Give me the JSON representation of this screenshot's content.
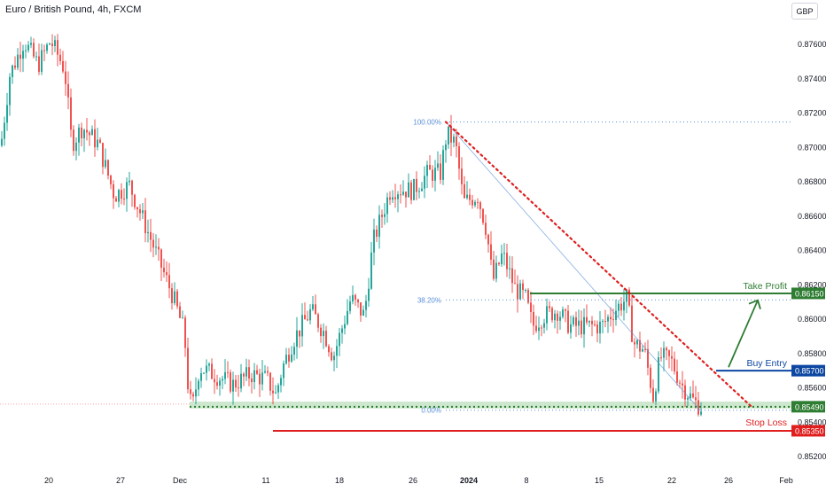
{
  "header": {
    "symbol_title": "Euro / British Pound, 4h, FXCM",
    "currency_button": "GBP"
  },
  "colors": {
    "up": "#26a69a",
    "down": "#ef5350",
    "take_profit": "#2e7d32",
    "buy_entry": "#0d47a1",
    "stop_loss": "#e01e1e",
    "fib": "#5a8fd6",
    "support_zone": "#c8e6c9"
  },
  "chart_data": {
    "type": "candlestick",
    "title": "Euro / British Pound, 4h, FXCM",
    "x_ticks": [
      "20",
      "27",
      "Dec",
      "11",
      "18",
      "26",
      "2024",
      "8",
      "15",
      "22",
      "26",
      "Feb"
    ],
    "y_ticks": [
      "0.87600",
      "0.87400",
      "0.87200",
      "0.87000",
      "0.86800",
      "0.86600",
      "0.86400",
      "0.86200",
      "0.86000",
      "0.85800",
      "0.85600",
      "0.85400",
      "0.85200"
    ],
    "ylim": [
      0.8515,
      0.8774
    ],
    "price_path": [
      [
        0,
        0.8701
      ],
      [
        10,
        0.8742
      ],
      [
        26,
        0.8762
      ],
      [
        42,
        0.8748
      ],
      [
        56,
        0.8762
      ],
      [
        66,
        0.8752
      ],
      [
        72,
        0.8745
      ],
      [
        80,
        0.8702
      ],
      [
        92,
        0.8712
      ],
      [
        110,
        0.8702
      ],
      [
        128,
        0.8672
      ],
      [
        145,
        0.8678
      ],
      [
        165,
        0.8652
      ],
      [
        180,
        0.8632
      ],
      [
        195,
        0.8612
      ],
      [
        207,
        0.8592
      ],
      [
        212,
        0.8555
      ],
      [
        216,
        0.8548
      ],
      [
        224,
        0.8572
      ],
      [
        240,
        0.8568
      ],
      [
        262,
        0.8562
      ],
      [
        282,
        0.8568
      ],
      [
        300,
        0.8565
      ],
      [
        310,
        0.8556
      ],
      [
        318,
        0.8572
      ],
      [
        330,
        0.8588
      ],
      [
        350,
        0.8605
      ],
      [
        365,
        0.8592
      ],
      [
        375,
        0.8578
      ],
      [
        395,
        0.8612
      ],
      [
        410,
        0.8602
      ],
      [
        420,
        0.8645
      ],
      [
        440,
        0.8676
      ],
      [
        465,
        0.8675
      ],
      [
        482,
        0.8685
      ],
      [
        496,
        0.8685
      ],
      [
        503,
        0.8708
      ],
      [
        513,
        0.8702
      ],
      [
        522,
        0.8668
      ],
      [
        538,
        0.8672
      ],
      [
        548,
        0.8652
      ],
      [
        555,
        0.8622
      ],
      [
        566,
        0.8638
      ],
      [
        580,
        0.8618
      ],
      [
        592,
        0.8612
      ],
      [
        600,
        0.8596
      ],
      [
        612,
        0.8602
      ],
      [
        628,
        0.8605
      ],
      [
        642,
        0.8596
      ],
      [
        660,
        0.8596
      ],
      [
        678,
        0.8596
      ],
      [
        692,
        0.8605
      ],
      [
        706,
        0.8612
      ],
      [
        714,
        0.8586
      ],
      [
        726,
        0.8582
      ],
      [
        736,
        0.8555
      ],
      [
        744,
        0.8578
      ],
      [
        756,
        0.8576
      ],
      [
        768,
        0.8562
      ],
      [
        782,
        0.8552
      ],
      [
        790,
        0.8549
      ]
    ],
    "fibonacci": [
      {
        "label": "100.00%",
        "value": 0.87148
      },
      {
        "label": "38.20%",
        "value": 0.86112
      },
      {
        "label": "0.00%",
        "value": 0.8547
      }
    ],
    "levels": [
      {
        "name": "Take Profit",
        "value": 0.8615,
        "tag": "0.86150",
        "color": "#2e7d32"
      },
      {
        "name": "Buy Entry",
        "value": 0.857,
        "tag": "0.85700",
        "color": "#0d47a1"
      },
      {
        "name": "",
        "value": 0.8549,
        "tag": "0.85490",
        "color": "#2e7d32"
      },
      {
        "name": "Stop Loss",
        "value": 0.8535,
        "tag": "0.85350",
        "color": "#e01e1e"
      }
    ],
    "support_zone": {
      "from": 0.8548,
      "to": 0.8552
    },
    "trendline": {
      "start": {
        "bar": 503,
        "value": 0.87148
      },
      "end": {
        "bar": 848,
        "value": 0.8549
      }
    },
    "grid": false
  }
}
